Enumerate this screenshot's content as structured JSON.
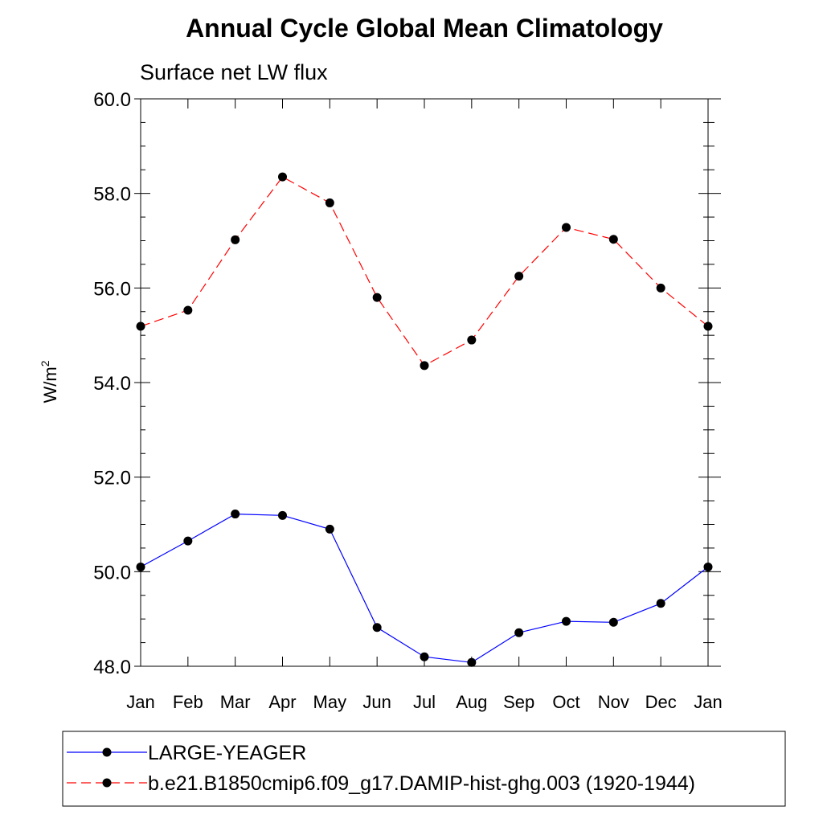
{
  "chart_data": {
    "type": "line",
    "title": "Annual Cycle Global Mean Climatology",
    "subtitle": "Surface net LW flux",
    "ylabel": "W/m",
    "ylabel_superscript": "2",
    "xlabel": "",
    "categories": [
      "Jan",
      "Feb",
      "Mar",
      "Apr",
      "May",
      "Jun",
      "Jul",
      "Aug",
      "Sep",
      "Oct",
      "Nov",
      "Dec",
      "Jan"
    ],
    "ylim": [
      48.0,
      60.0
    ],
    "yticks": [
      "48.0",
      "50.0",
      "52.0",
      "54.0",
      "56.0",
      "58.0",
      "60.0"
    ],
    "grid": false,
    "legend_position": "bottom",
    "series": [
      {
        "name": "LARGE-YEAGER",
        "color": "#0000ff",
        "line_style": "solid",
        "marker": "filled-circle",
        "values": [
          50.1,
          50.65,
          51.22,
          51.19,
          50.9,
          48.82,
          48.2,
          48.08,
          48.71,
          48.95,
          48.93,
          49.33,
          50.1
        ]
      },
      {
        "name": "b.e21.B1850cmip6.f09_g17.DAMIP-hist-ghg.003 (1920-1944)",
        "color": "#ff0000",
        "line_style": "dashed",
        "marker": "filled-circle",
        "values": [
          55.19,
          55.53,
          57.02,
          58.35,
          57.8,
          55.8,
          54.36,
          54.9,
          56.25,
          57.28,
          57.03,
          56.0,
          55.19
        ]
      }
    ]
  }
}
